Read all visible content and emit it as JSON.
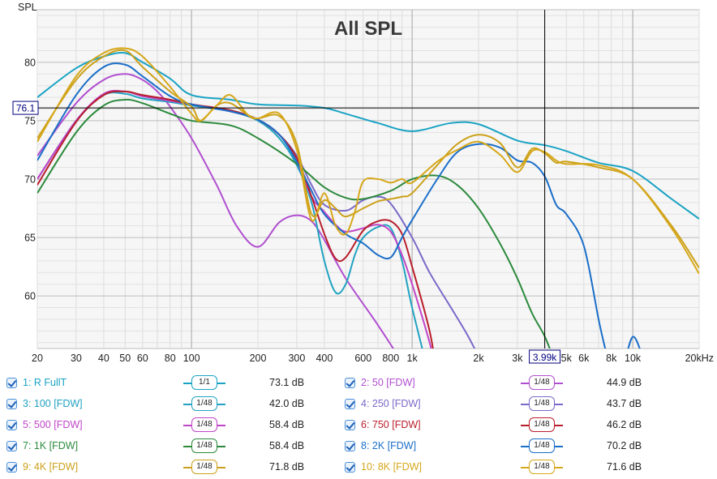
{
  "chart_data": {
    "type": "line",
    "title": "All SPL",
    "ylabel": "SPL",
    "xscale": "log",
    "xlim": [
      20,
      20000
    ],
    "ylim": [
      55.5,
      84.5
    ],
    "x_ticks": [
      20,
      30,
      40,
      50,
      60,
      80,
      100,
      200,
      300,
      400,
      600,
      800,
      1000,
      2000,
      3000,
      5000,
      6000,
      8000,
      10000,
      20000
    ],
    "x_tick_labels": [
      "20",
      "30",
      "40",
      "50",
      "60",
      "80",
      "100",
      "200",
      "300",
      "400",
      "600",
      "800",
      "1k",
      "2k",
      "3k",
      "5k",
      "6k",
      "8k",
      "10k",
      "20kHz"
    ],
    "y_ticks": [
      60,
      65,
      70,
      75,
      80
    ],
    "y_tick_labels": [
      "60",
      "65",
      "70",
      "75",
      "80"
    ],
    "cursor": {
      "x": 3990,
      "y": 76.1,
      "x_label": "3.99k",
      "y_label": "76.1"
    },
    "grid": true,
    "legend": "bottom",
    "series": [
      {
        "name": "1: R FullT",
        "color": "#1aa3c4",
        "smoothing": "1/1",
        "level": "73.1 dB",
        "x": [
          20,
          30,
          40,
          50,
          60,
          80,
          100,
          150,
          200,
          300,
          400,
          500,
          700,
          1000,
          1500,
          2000,
          3000,
          4000,
          5000,
          7000,
          10000,
          15000,
          20000
        ],
        "y": [
          77,
          79.5,
          80.5,
          80.8,
          80,
          78.6,
          77.2,
          76.8,
          76.4,
          76.3,
          76.1,
          75.6,
          74.8,
          74.1,
          74.8,
          74.7,
          73.3,
          72.9,
          72.4,
          71.4,
          70.7,
          68.3,
          66.6
        ]
      },
      {
        "name": "2: 50 [FDW]",
        "color": "#b04fd0",
        "smoothing": "1/48",
        "level": "44.9 dB",
        "x": [
          20,
          30,
          40,
          50,
          60,
          70,
          80,
          100,
          130,
          160,
          200,
          250,
          300,
          350,
          400,
          500,
          700,
          1000
        ],
        "y": [
          72,
          76.5,
          78.5,
          79,
          78.5,
          77.5,
          76.2,
          73.5,
          69.5,
          66,
          64.2,
          66.3,
          66.9,
          66.4,
          64.8,
          61.5,
          57.5,
          53
        ]
      },
      {
        "name": "3: 100 [FDW]",
        "color": "#21a2c1",
        "smoothing": "1/48",
        "level": "42.0 dB",
        "x": [
          20,
          30,
          40,
          50,
          60,
          80,
          100,
          150,
          200,
          250,
          300,
          350,
          400,
          450,
          500,
          550,
          600,
          700,
          800,
          900,
          1000,
          1200
        ],
        "y": [
          70,
          75,
          77.2,
          77.3,
          76.9,
          76.6,
          76.3,
          75.8,
          75,
          73.5,
          71.2,
          68,
          63,
          60.3,
          61,
          63.5,
          65,
          65.9,
          65.8,
          63,
          59,
          53
        ]
      },
      {
        "name": "4: 250 [FDW]",
        "color": "#7b68c8",
        "smoothing": "1/48",
        "level": "43.7 dB",
        "x": [
          20,
          30,
          40,
          50,
          60,
          80,
          100,
          150,
          200,
          250,
          300,
          350,
          400,
          500,
          600,
          700,
          800,
          1000,
          1200,
          1500,
          1800,
          2100
        ],
        "y": [
          70,
          75,
          77.2,
          77.5,
          77.1,
          76.7,
          76.4,
          75.8,
          75.1,
          73.8,
          72,
          69.5,
          67.8,
          67.3,
          68.2,
          68.5,
          67.9,
          65,
          62,
          59,
          56.5,
          54
        ]
      },
      {
        "name": "5: 500 [FDW]",
        "color": "#c045c8",
        "smoothing": "1/48",
        "level": "58.4 dB",
        "x": [
          20,
          30,
          40,
          50,
          60,
          80,
          100,
          150,
          200,
          250,
          300,
          350,
          400,
          450,
          500,
          600,
          700,
          800,
          900,
          1000,
          1200,
          1300
        ],
        "y": [
          70,
          75,
          77.3,
          77.5,
          77.1,
          76.7,
          76.4,
          75.8,
          75.1,
          73.8,
          71.5,
          68.5,
          67.2,
          66.1,
          65.5,
          65.8,
          66.1,
          65.5,
          63.5,
          61,
          56,
          53
        ]
      },
      {
        "name": "6: 750 [FDW]",
        "color": "#b81e2c",
        "smoothing": "1/48",
        "level": "46.2 dB",
        "x": [
          20,
          30,
          40,
          50,
          60,
          80,
          100,
          150,
          200,
          250,
          300,
          350,
          400,
          450,
          500,
          600,
          700,
          800,
          900,
          1000,
          1200,
          1300
        ],
        "y": [
          69.5,
          74.9,
          77.2,
          77.5,
          77.2,
          76.8,
          76.4,
          75.9,
          75.1,
          73.8,
          71.8,
          68.5,
          65.3,
          63.2,
          63.3,
          65.6,
          66.4,
          66.4,
          65.3,
          62.5,
          57,
          53
        ]
      },
      {
        "name": "7: 1K [FDW]",
        "color": "#2c8a3c",
        "smoothing": "1/48",
        "level": "58.4 dB",
        "x": [
          20,
          30,
          40,
          50,
          60,
          80,
          100,
          150,
          200,
          300,
          400,
          500,
          600,
          800,
          1000,
          1300,
          1600,
          2000,
          2500,
          3000,
          3500,
          4000,
          4500
        ],
        "y": [
          68.8,
          74,
          76.3,
          76.8,
          76.5,
          75.6,
          75,
          74.6,
          73.5,
          71.3,
          69.3,
          68.4,
          68.3,
          69,
          70,
          70.3,
          69.5,
          67.5,
          64.5,
          61.5,
          58.5,
          56.5,
          54
        ]
      },
      {
        "name": "8: 2K [FDW]",
        "color": "#1a6ec8",
        "smoothing": "1/48",
        "level": "70.2 dB",
        "x": [
          20,
          30,
          40,
          50,
          60,
          80,
          100,
          150,
          200,
          250,
          300,
          350,
          400,
          500,
          600,
          700,
          800,
          900,
          1000,
          1300,
          1600,
          2000,
          2500,
          3000,
          3500,
          4000,
          4500,
          5000,
          6000,
          7000,
          7500,
          8000,
          9000,
          10000,
          11000
        ],
        "y": [
          71.6,
          77.2,
          79.6,
          79.8,
          78.8,
          77.1,
          76.4,
          75.8,
          75.1,
          73.8,
          71.5,
          69,
          67,
          65.3,
          64.5,
          63.5,
          63.3,
          65,
          66.5,
          70,
          72.3,
          73,
          72.7,
          71.6,
          71.4,
          70.2,
          67.8,
          67,
          64.3,
          58,
          55.5,
          53.5,
          54,
          56.5,
          55
        ]
      },
      {
        "name": "9: 4K [FDW]",
        "color": "#cca11a",
        "smoothing": "1/48",
        "level": "71.8 dB",
        "x": [
          20,
          30,
          40,
          50,
          60,
          80,
          100,
          110,
          130,
          150,
          180,
          200,
          250,
          300,
          350,
          400,
          450,
          500,
          600,
          700,
          800,
          900,
          1000,
          1300,
          1600,
          2000,
          2500,
          3000,
          3500,
          4000,
          4500,
          5000,
          7000,
          10000,
          15000,
          20000
        ],
        "y": [
          73.5,
          78.5,
          80.5,
          81,
          79.6,
          77.5,
          76.2,
          75,
          76.3,
          76.5,
          75.5,
          75.2,
          75.4,
          73,
          67,
          68.2,
          67.5,
          66.8,
          67.5,
          68.1,
          68.3,
          68.5,
          68.8,
          71.2,
          73,
          73.8,
          73.1,
          71,
          72.6,
          72.2,
          71.4,
          71.5,
          71,
          70,
          66,
          62.4
        ]
      },
      {
        "name": "10: 8K [FDW]",
        "color": "#d6a71a",
        "smoothing": "1/48",
        "level": "71.6 dB",
        "x": [
          20,
          30,
          40,
          50,
          60,
          80,
          100,
          110,
          130,
          150,
          180,
          200,
          250,
          300,
          350,
          400,
          450,
          500,
          550,
          600,
          700,
          800,
          900,
          1000,
          1300,
          1600,
          2000,
          2500,
          3000,
          3500,
          4000,
          4500,
          5000,
          7000,
          10000,
          15000,
          20000
        ],
        "y": [
          73.2,
          78.8,
          80.8,
          81.2,
          80.5,
          77.9,
          75.6,
          75,
          76.3,
          77.2,
          75.5,
          75.2,
          75.6,
          72.5,
          66.5,
          68.8,
          66,
          65.3,
          67.2,
          69.8,
          70,
          69.7,
          70,
          69.7,
          71.5,
          72.5,
          73.2,
          72.1,
          70.6,
          72.4,
          72.3,
          71.6,
          71.3,
          71.2,
          70,
          65.8,
          61.9
        ]
      }
    ]
  }
}
